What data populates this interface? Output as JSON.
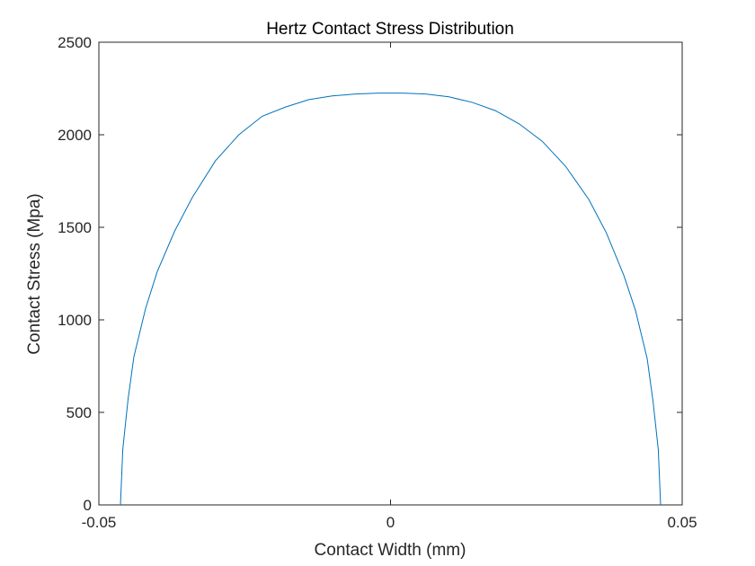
{
  "chart_data": {
    "type": "line",
    "title": "Hertz Contact Stress Distribution",
    "xlabel": "Contact Width (mm)",
    "ylabel": "Contact Stress (Mpa)",
    "xlim": [
      -0.05,
      0.05
    ],
    "ylim": [
      0,
      2500
    ],
    "xticks": [
      -0.05,
      0,
      0.05
    ],
    "xtick_labels": [
      "-0.05",
      "0",
      "0.05"
    ],
    "yticks": [
      0,
      500,
      1000,
      1500,
      2000,
      2500
    ],
    "ytick_labels": [
      "0",
      "500",
      "1000",
      "1500",
      "2000",
      "2500"
    ],
    "grid": false,
    "series": [
      {
        "color": "#0072BD",
        "x": [
          -0.0463,
          -0.0459,
          -0.045,
          -0.044,
          -0.042,
          -0.04,
          -0.037,
          -0.034,
          -0.03,
          -0.026,
          -0.022,
          -0.018,
          -0.014,
          -0.01,
          -0.006,
          -0.002,
          0,
          0.002,
          0.006,
          0.01,
          0.014,
          0.018,
          0.022,
          0.026,
          0.03,
          0.034,
          0.037,
          0.04,
          0.042,
          0.044,
          0.045,
          0.0459,
          0.0463
        ],
        "y": [
          0,
          300,
          570,
          800,
          1060,
          1260,
          1480,
          1660,
          1860,
          2000,
          2100,
          2150,
          2190,
          2210,
          2220,
          2225,
          2225,
          2225,
          2220,
          2205,
          2175,
          2130,
          2060,
          1965,
          1830,
          1650,
          1470,
          1240,
          1050,
          790,
          560,
          300,
          0
        ]
      }
    ]
  }
}
